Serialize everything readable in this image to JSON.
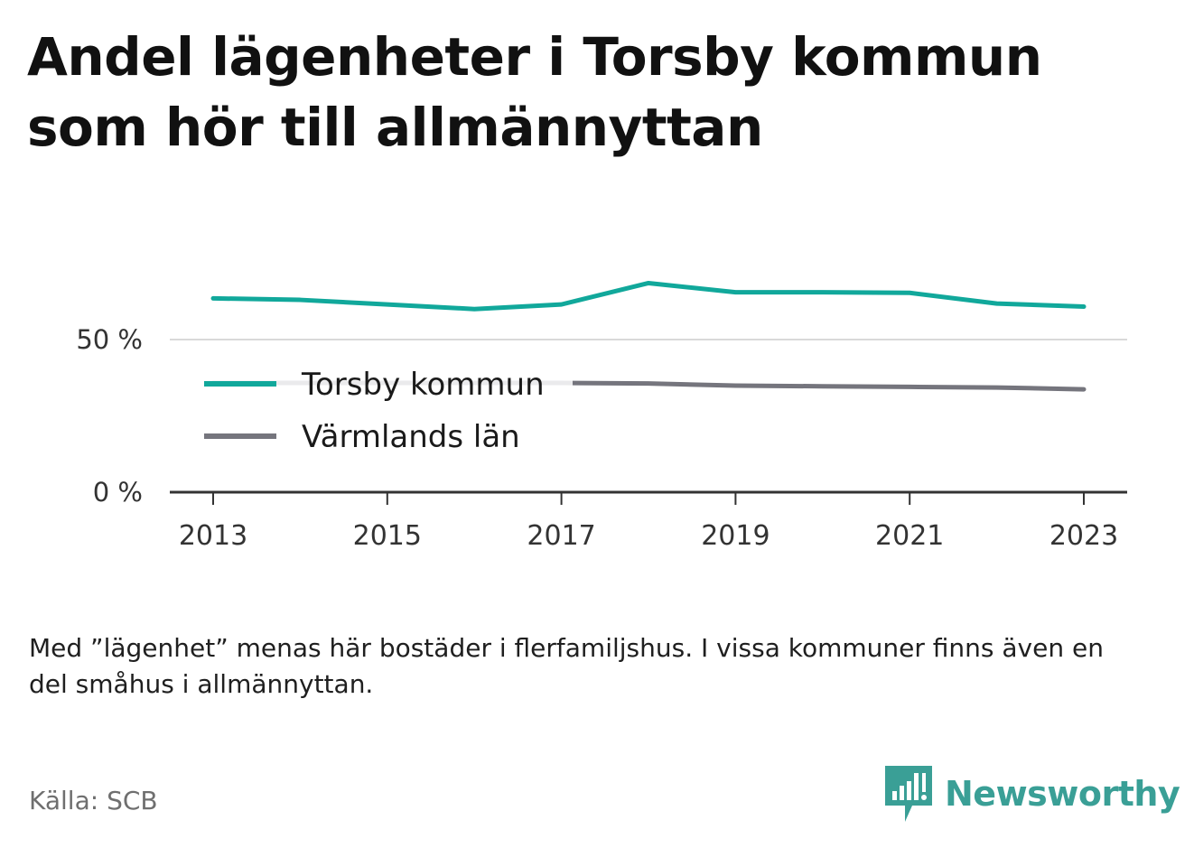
{
  "title": "Andel lägenheter i Torsby kommun som hör till allmännyttan",
  "note": "Med ”lägenhet” menas här bostäder i flerfamiljshus. I vissa kommuner finns även en del småhus i allmännyttan.",
  "source": "Källa: SCB",
  "brand": {
    "name": "Newsworthy",
    "icon": "bar-chart-speech-icon",
    "color": "#3a9f96"
  },
  "chart_data": {
    "type": "line",
    "title": "Andel lägenheter i Torsby kommun som hör till allmännyttan",
    "x": [
      2013,
      2014,
      2015,
      2016,
      2017,
      2018,
      2019,
      2020,
      2021,
      2022,
      2023
    ],
    "xticks": [
      "2013",
      "2015",
      "2017",
      "2019",
      "2021",
      "2023"
    ],
    "yticks": [
      "0 %",
      "50 %"
    ],
    "ylim": [
      0,
      100
    ],
    "grid": true,
    "legend_position": "center-left",
    "series": [
      {
        "name": "Torsby kommun",
        "color": "#11a89b",
        "values": [
          63.5,
          63.0,
          61.5,
          60.0,
          61.5,
          68.5,
          65.5,
          65.5,
          65.3,
          61.8,
          60.8
        ]
      },
      {
        "name": "Värmlands län",
        "color": "#75757d",
        "values": [
          35.8,
          35.8,
          35.8,
          35.8,
          35.8,
          35.6,
          34.9,
          34.7,
          34.5,
          34.3,
          33.7
        ]
      }
    ]
  }
}
